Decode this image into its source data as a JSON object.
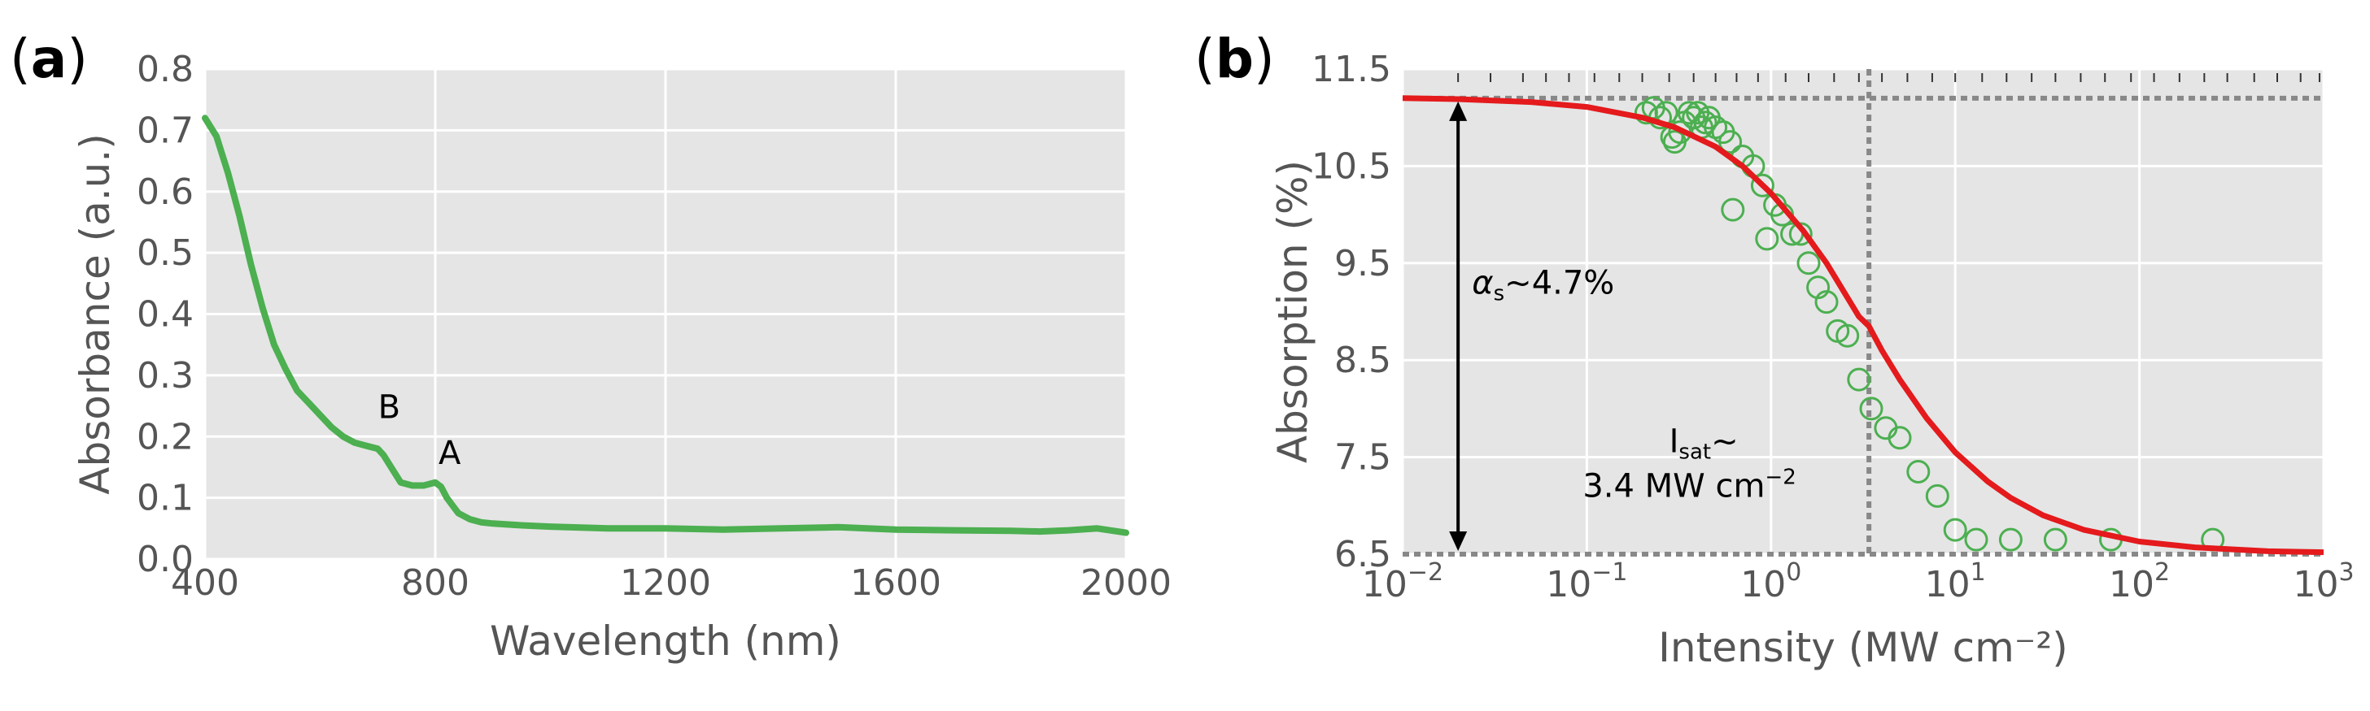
{
  "panel_a": {
    "label_open": "(",
    "label_letter": "a",
    "label_close": ")"
  },
  "panel_b": {
    "label_open": "(",
    "label_letter": "b",
    "label_close": ")"
  },
  "chart_data": [
    {
      "type": "line",
      "panel": "a",
      "xlabel": "Wavelength (nm)",
      "ylabel": "Absorbance (a.u.)",
      "xlim": [
        400,
        2000
      ],
      "ylim": [
        0.0,
        0.8
      ],
      "xticks": [
        400,
        800,
        1200,
        1600,
        2000
      ],
      "xtick_labels": [
        "400",
        "800",
        "1200",
        "1600",
        "2000"
      ],
      "yticks": [
        0.0,
        0.1,
        0.2,
        0.3,
        0.4,
        0.5,
        0.6,
        0.7,
        0.8
      ],
      "ytick_labels": [
        "0.0",
        "0.1",
        "0.2",
        "0.3",
        "0.4",
        "0.5",
        "0.6",
        "0.7",
        "0.8"
      ],
      "grid": true,
      "series": [
        {
          "color": "#4caf50",
          "x": [
            400,
            420,
            440,
            460,
            480,
            500,
            520,
            540,
            560,
            580,
            600,
            620,
            640,
            660,
            680,
            700,
            710,
            720,
            740,
            760,
            780,
            800,
            810,
            820,
            840,
            860,
            880,
            900,
            950,
            1000,
            1100,
            1200,
            1300,
            1400,
            1500,
            1600,
            1700,
            1800,
            1850,
            1900,
            1950,
            2000
          ],
          "y": [
            0.72,
            0.69,
            0.63,
            0.56,
            0.48,
            0.41,
            0.35,
            0.31,
            0.275,
            0.255,
            0.235,
            0.215,
            0.2,
            0.19,
            0.185,
            0.18,
            0.17,
            0.155,
            0.125,
            0.12,
            0.12,
            0.125,
            0.118,
            0.1,
            0.075,
            0.065,
            0.06,
            0.058,
            0.055,
            0.053,
            0.05,
            0.05,
            0.048,
            0.05,
            0.052,
            0.048,
            0.047,
            0.046,
            0.045,
            0.047,
            0.05,
            0.043
          ]
        }
      ],
      "annotations": [
        {
          "text": "B",
          "x": 720,
          "y": 0.23
        },
        {
          "text": "A",
          "x": 825,
          "y": 0.155
        }
      ]
    },
    {
      "type": "scatter",
      "panel": "b",
      "xlabel": "Intensity (MW cm⁻²)",
      "ylabel": "Absorption (%)",
      "xscale": "log",
      "xlim": [
        0.01,
        1000
      ],
      "ylim": [
        6.5,
        11.5
      ],
      "xticks": [
        0.01,
        0.1,
        1,
        10,
        100,
        1000
      ],
      "xtick_base": "10",
      "xtick_exponents": [
        "−2",
        "−1",
        "0",
        "1",
        "2",
        "3"
      ],
      "yticks": [
        6.5,
        7.5,
        8.5,
        9.5,
        10.5,
        11.5
      ],
      "ytick_labels": [
        "6.5",
        "7.5",
        "8.5",
        "9.5",
        "10.5",
        "11.5"
      ],
      "grid": true,
      "series": [
        {
          "style": "markers",
          "marker": "open-circle",
          "color": "#4caf50",
          "x": [
            0.21,
            0.23,
            0.25,
            0.27,
            0.29,
            0.3,
            0.32,
            0.34,
            0.36,
            0.38,
            0.4,
            0.42,
            0.44,
            0.46,
            0.5,
            0.55,
            0.6,
            0.62,
            0.7,
            0.8,
            0.9,
            0.95,
            1.05,
            1.15,
            1.3,
            1.45,
            1.6,
            1.8,
            2.0,
            2.3,
            2.6,
            3.0,
            3.5,
            4.2,
            5.0,
            6.3,
            8.0,
            10.0,
            13.0,
            20.0,
            35.0,
            70.0,
            250.0
          ],
          "y": [
            11.05,
            11.1,
            11.0,
            11.05,
            10.8,
            10.75,
            10.85,
            10.95,
            11.05,
            11.0,
            11.05,
            10.9,
            10.95,
            11.0,
            10.9,
            10.85,
            10.75,
            10.05,
            10.6,
            10.5,
            10.3,
            9.75,
            10.1,
            10.0,
            9.8,
            9.8,
            9.5,
            9.25,
            9.1,
            8.8,
            8.75,
            8.3,
            8.0,
            7.8,
            7.7,
            7.35,
            7.1,
            6.75,
            6.65,
            6.65,
            6.65,
            6.65,
            6.65
          ]
        },
        {
          "style": "line",
          "color": "#e41a1c",
          "x": [
            0.01,
            0.02,
            0.05,
            0.1,
            0.2,
            0.3,
            0.5,
            0.7,
            1.0,
            1.5,
            2.0,
            3.0,
            3.4,
            4.0,
            5.0,
            7.0,
            10.0,
            15.0,
            20.0,
            30.0,
            50.0,
            100.0,
            200.0,
            500.0,
            1000.0
          ],
          "y": [
            11.2,
            11.19,
            11.16,
            11.11,
            11.0,
            10.9,
            10.7,
            10.5,
            10.22,
            9.83,
            9.5,
            8.95,
            8.85,
            8.6,
            8.3,
            7.9,
            7.55,
            7.25,
            7.08,
            6.9,
            6.75,
            6.63,
            6.57,
            6.53,
            6.52
          ]
        },
        {
          "style": "reference-lines",
          "color": "#888888",
          "hlines": [
            11.2,
            6.5
          ],
          "vlines": [
            3.4
          ]
        }
      ],
      "annotations": [
        {
          "text_sym": "α",
          "text_sub": "s",
          "text_rest": "~4.7%",
          "x": 0.02,
          "y": 9.3
        },
        {
          "text_main": "I",
          "text_sub": "sat",
          "text_rest": "~",
          "line2": "3.4 MW cm",
          "line2_sup": "−2",
          "x": 0.8,
          "y": 7.2
        }
      ],
      "rug_ticks_top": [
        0.02,
        0.03,
        0.045,
        0.06,
        0.08,
        0.11,
        0.15,
        0.2,
        0.28,
        0.38,
        0.5,
        0.65,
        0.85,
        1.2,
        1.6,
        2.2,
        3.0,
        4.0,
        5.5,
        7.5,
        10,
        14,
        19,
        26,
        35,
        48,
        65,
        90,
        120,
        165,
        225,
        300,
        420,
        560,
        750,
        950
      ]
    }
  ]
}
